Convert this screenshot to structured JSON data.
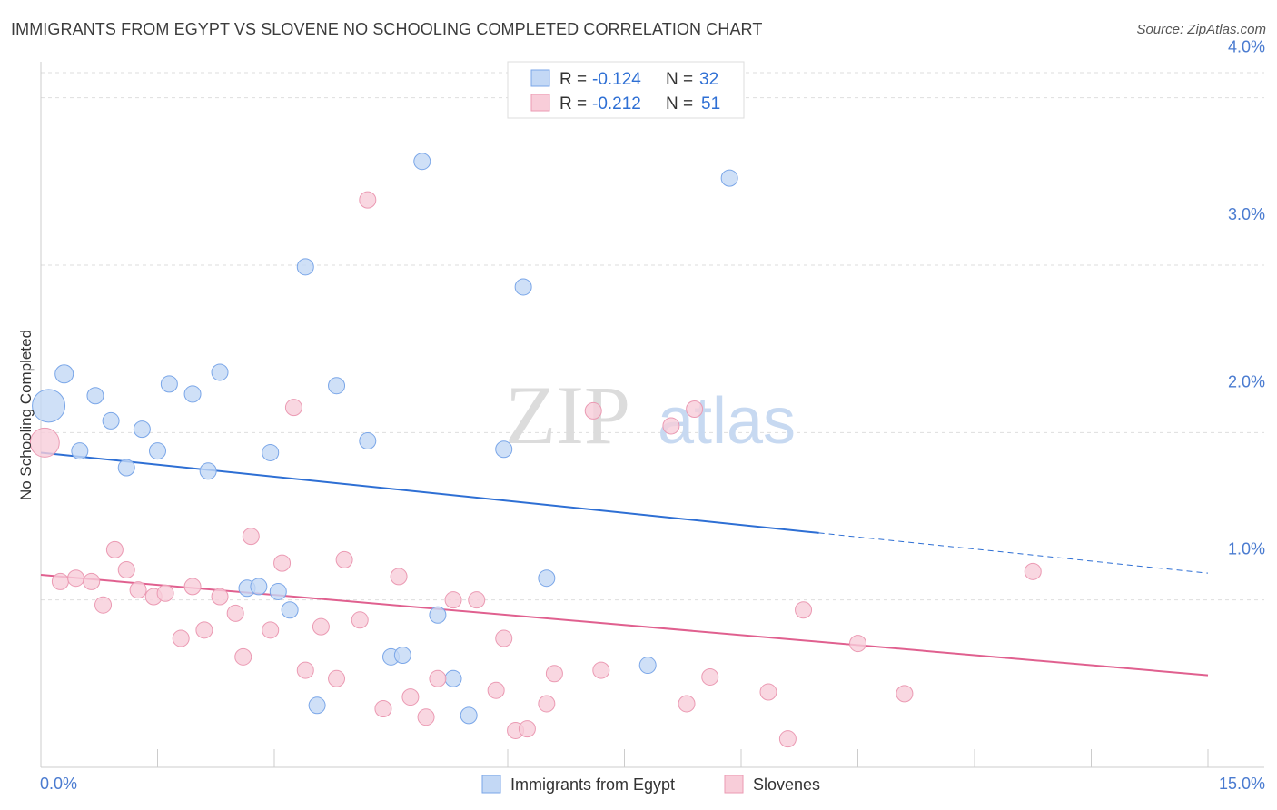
{
  "chart_data": {
    "type": "scatter",
    "title": "IMMIGRANTS FROM EGYPT VS SLOVENE NO SCHOOLING COMPLETED CORRELATION CHART",
    "source": "Source: ZipAtlas.com",
    "xlabel": "",
    "ylabel": "No Schooling Completed",
    "xlim": [
      0,
      15
    ],
    "ylim": [
      0,
      4.15
    ],
    "x_tick_labels": [
      "0.0%",
      "15.0%"
    ],
    "y_ticks": [
      1.0,
      2.0,
      3.0,
      4.0
    ],
    "y_tick_labels": [
      "1.0%",
      "2.0%",
      "3.0%",
      "4.0%"
    ],
    "grid": true,
    "watermark": {
      "zip": "ZIP",
      "atlas": "atlas"
    },
    "legend": {
      "r_label": "R =",
      "n_label": "N =",
      "entries": [
        {
          "r": "-0.124",
          "n": "32"
        },
        {
          "r": "-0.212",
          "n": "51"
        }
      ]
    },
    "series": [
      {
        "name": "Immigrants from Egypt",
        "color": "#7aa6e8",
        "fill": "#c3d8f5",
        "line_color": "#2e6fd4",
        "trend": {
          "x0": 0.0,
          "y0": 1.88,
          "x1": 10.0,
          "y1": 1.4,
          "x_dash_end": 15.0,
          "y_dash_end": 1.16
        },
        "points": [
          [
            0.1,
            2.16,
            18
          ],
          [
            0.3,
            2.35,
            10
          ],
          [
            0.5,
            1.89,
            9
          ],
          [
            0.7,
            2.22,
            9
          ],
          [
            0.9,
            2.07,
            9
          ],
          [
            1.1,
            1.79,
            9
          ],
          [
            1.3,
            2.02,
            9
          ],
          [
            1.5,
            1.89,
            9
          ],
          [
            1.65,
            2.29,
            9
          ],
          [
            1.95,
            2.23,
            9
          ],
          [
            2.15,
            1.77,
            9
          ],
          [
            2.3,
            2.36,
            9
          ],
          [
            2.65,
            1.07,
            9
          ],
          [
            2.8,
            1.08,
            9
          ],
          [
            2.95,
            1.88,
            9
          ],
          [
            3.05,
            1.05,
            9
          ],
          [
            3.2,
            0.94,
            9
          ],
          [
            3.4,
            2.99,
            9
          ],
          [
            3.55,
            0.37,
            9
          ],
          [
            3.8,
            2.28,
            9
          ],
          [
            4.2,
            1.95,
            9
          ],
          [
            4.5,
            0.66,
            9
          ],
          [
            4.65,
            0.67,
            9
          ],
          [
            4.9,
            3.62,
            9
          ],
          [
            5.1,
            0.91,
            9
          ],
          [
            5.3,
            0.53,
            9
          ],
          [
            5.5,
            0.31,
            9
          ],
          [
            5.95,
            1.9,
            9
          ],
          [
            6.2,
            2.87,
            9
          ],
          [
            6.5,
            1.13,
            9
          ],
          [
            7.8,
            0.61,
            9
          ],
          [
            8.85,
            3.52,
            9
          ]
        ]
      },
      {
        "name": "Slovenes",
        "color": "#eb9ab3",
        "fill": "#f8cdd9",
        "line_color": "#e0608f",
        "trend": {
          "x0": 0.0,
          "y0": 1.15,
          "x1": 15.0,
          "y1": 0.55
        },
        "points": [
          [
            0.05,
            1.94,
            16
          ],
          [
            0.25,
            1.11,
            9
          ],
          [
            0.45,
            1.13,
            9
          ],
          [
            0.65,
            1.11,
            9
          ],
          [
            0.8,
            0.97,
            9
          ],
          [
            0.95,
            1.3,
            9
          ],
          [
            1.1,
            1.18,
            9
          ],
          [
            1.25,
            1.06,
            9
          ],
          [
            1.45,
            1.02,
            9
          ],
          [
            1.6,
            1.04,
            9
          ],
          [
            1.8,
            0.77,
            9
          ],
          [
            1.95,
            1.08,
            9
          ],
          [
            2.1,
            0.82,
            9
          ],
          [
            2.3,
            1.02,
            9
          ],
          [
            2.5,
            0.92,
            9
          ],
          [
            2.6,
            0.66,
            9
          ],
          [
            2.7,
            1.38,
            9
          ],
          [
            2.95,
            0.82,
            9
          ],
          [
            3.1,
            1.22,
            9
          ],
          [
            3.25,
            2.15,
            9
          ],
          [
            3.4,
            0.58,
            9
          ],
          [
            3.6,
            0.84,
            9
          ],
          [
            3.8,
            0.53,
            9
          ],
          [
            3.9,
            1.24,
            9
          ],
          [
            4.1,
            0.88,
            9
          ],
          [
            4.2,
            3.39,
            9
          ],
          [
            4.4,
            0.35,
            9
          ],
          [
            4.6,
            1.14,
            9
          ],
          [
            4.75,
            0.42,
            9
          ],
          [
            4.95,
            0.3,
            9
          ],
          [
            5.1,
            0.53,
            9
          ],
          [
            5.3,
            1.0,
            9
          ],
          [
            5.6,
            1.0,
            9
          ],
          [
            5.85,
            0.46,
            9
          ],
          [
            5.95,
            0.77,
            9
          ],
          [
            6.1,
            0.22,
            9
          ],
          [
            6.25,
            0.23,
            9
          ],
          [
            6.5,
            0.38,
            9
          ],
          [
            6.6,
            0.56,
            9
          ],
          [
            7.1,
            2.13,
            9
          ],
          [
            7.2,
            0.58,
            9
          ],
          [
            8.1,
            2.04,
            9
          ],
          [
            8.3,
            0.38,
            9
          ],
          [
            8.4,
            2.14,
            9
          ],
          [
            8.6,
            0.54,
            9
          ],
          [
            9.35,
            0.45,
            9
          ],
          [
            9.6,
            0.17,
            9
          ],
          [
            9.8,
            0.94,
            9
          ],
          [
            10.5,
            0.74,
            9
          ],
          [
            11.1,
            0.44,
            9
          ],
          [
            12.75,
            1.17,
            9
          ]
        ]
      }
    ]
  }
}
